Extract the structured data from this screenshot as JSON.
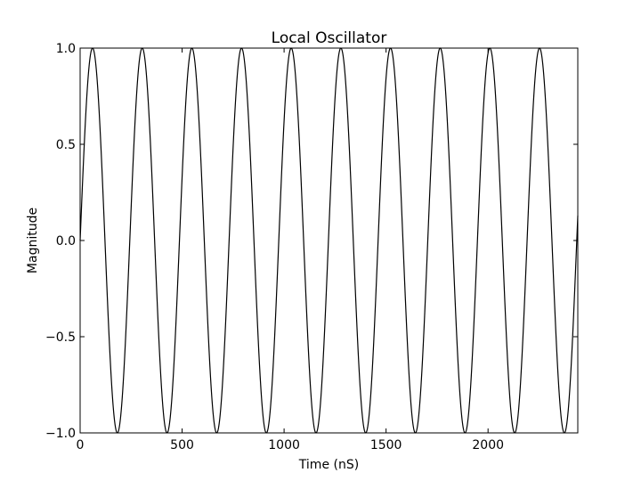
{
  "chart_data": {
    "type": "line",
    "title": "Local Oscillator",
    "xlabel": "Time (nS)",
    "ylabel": "Magnitude",
    "xlim": [
      0,
      2440
    ],
    "ylim": [
      -1.0,
      1.0
    ],
    "x_ticks": [
      0,
      500,
      1000,
      1500,
      2000
    ],
    "x_tick_labels": [
      "0",
      "500",
      "1000",
      "1500",
      "2000"
    ],
    "y_ticks": [
      1.0,
      0.5,
      0.0,
      -0.5,
      -1.0
    ],
    "y_tick_labels": [
      "1.0",
      "0.5",
      "0.0",
      "−0.5",
      "−1.0"
    ],
    "grid": false,
    "series": [
      {
        "function": "sine",
        "amplitude": 1.0,
        "period": 243.5,
        "phase": 0,
        "x_start": 0,
        "x_end": 2440,
        "color": "#000000"
      }
    ]
  }
}
